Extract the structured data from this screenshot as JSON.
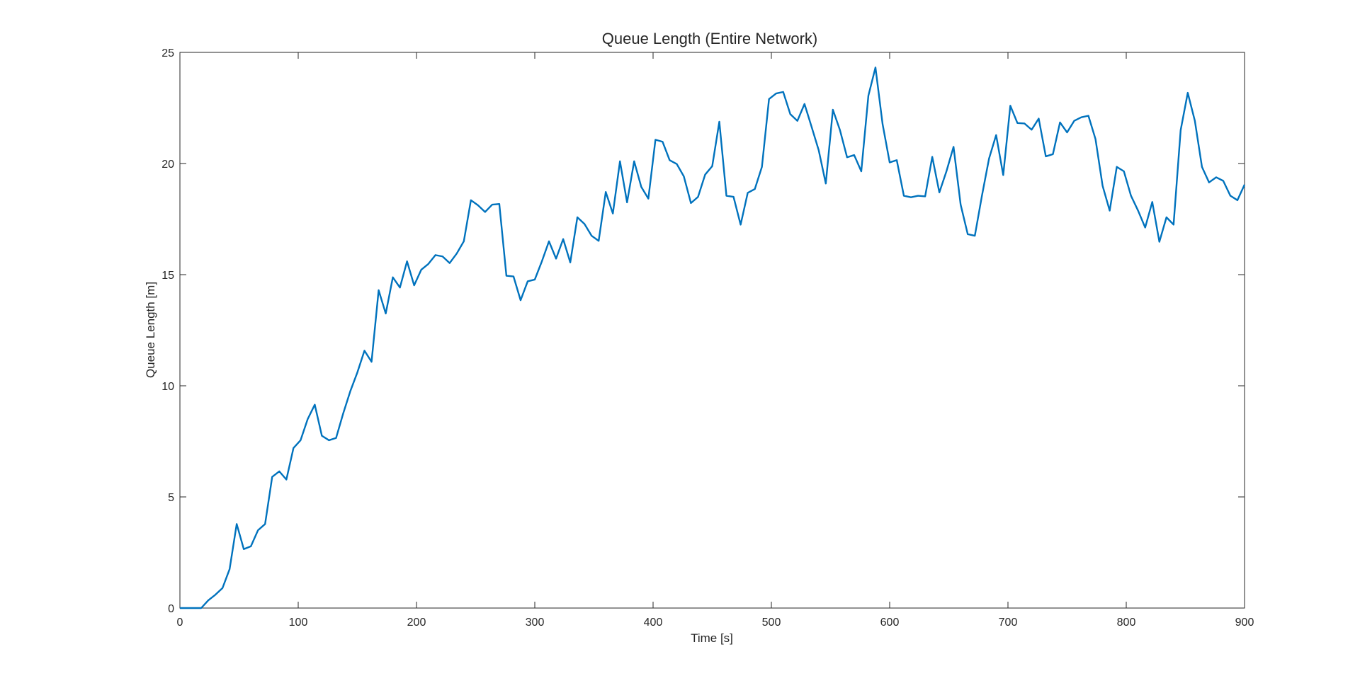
{
  "chart_data": {
    "type": "line",
    "title": "Queue Length (Entire Network)",
    "xlabel": "Time [s]",
    "ylabel": "Queue Length [m]",
    "xlim": [
      0,
      900
    ],
    "ylim": [
      0,
      25
    ],
    "xticks": [
      0,
      100,
      200,
      300,
      400,
      500,
      600,
      700,
      800,
      900
    ],
    "yticks": [
      0,
      5,
      10,
      15,
      20,
      25
    ],
    "grid": false,
    "line_color": "#0072BD",
    "series": [
      {
        "x": [
          0,
          6,
          12,
          18,
          24,
          30,
          36,
          42,
          48,
          54,
          60,
          66,
          72,
          78,
          84,
          90,
          96,
          102,
          108,
          114,
          120,
          126,
          132,
          138,
          144,
          150,
          156,
          162,
          168,
          174,
          180,
          186,
          192,
          198,
          204,
          210,
          216,
          222,
          228,
          234,
          240,
          246,
          252,
          258,
          264,
          270,
          276,
          282,
          288,
          294,
          300,
          306,
          312,
          318,
          324,
          330,
          336,
          342,
          348,
          354,
          360,
          366,
          372,
          378,
          384,
          390,
          396,
          402,
          408,
          414,
          420,
          426,
          432,
          438,
          444,
          450,
          456,
          462,
          468,
          474,
          480,
          486,
          492,
          498,
          504,
          510,
          516,
          522,
          528,
          534,
          540,
          546,
          552,
          558,
          564,
          570,
          576,
          582,
          588,
          594,
          600,
          606,
          612,
          618,
          624,
          630,
          636,
          642,
          648,
          654,
          660,
          666,
          672,
          678,
          684,
          690,
          696,
          702,
          708,
          714,
          720,
          726,
          732,
          738,
          744,
          750,
          756,
          762,
          768,
          774,
          780,
          786,
          792,
          798,
          804,
          810,
          816,
          822,
          828,
          834,
          840,
          846,
          852,
          858,
          864,
          870,
          876,
          882,
          888,
          894,
          900
        ],
        "y": [
          0,
          0,
          0,
          0,
          0.35,
          0.6,
          0.9,
          1.75,
          3.78,
          2.65,
          2.78,
          3.5,
          3.78,
          5.9,
          6.15,
          5.78,
          7.2,
          7.55,
          8.5,
          9.15,
          7.75,
          7.55,
          7.65,
          8.75,
          9.75,
          10.6,
          11.58,
          11.08,
          14.3,
          13.25,
          14.88,
          14.42,
          15.6,
          14.52,
          15.22,
          15.48,
          15.88,
          15.82,
          15.52,
          15.95,
          16.5,
          18.35,
          18.12,
          17.82,
          18.15,
          18.18,
          14.95,
          14.92,
          13.85,
          14.7,
          14.78,
          15.6,
          16.5,
          15.72,
          16.6,
          15.55,
          17.58,
          17.28,
          16.75,
          16.52,
          18.72,
          17.75,
          20.1,
          18.25,
          20.1,
          18.95,
          18.42,
          21.07,
          20.98,
          20.15,
          19.98,
          19.42,
          18.22,
          18.5,
          19.5,
          19.88,
          21.88,
          18.55,
          18.5,
          17.25,
          18.68,
          18.85,
          19.85,
          22.9,
          23.15,
          23.22,
          22.22,
          21.92,
          22.68,
          21.65,
          20.6,
          19.1,
          22.42,
          21.5,
          20.28,
          20.38,
          19.65,
          23.05,
          24.32,
          21.78,
          20.05,
          20.15,
          18.55,
          18.48,
          18.55,
          18.52,
          20.3,
          18.7,
          19.65,
          20.75,
          18.15,
          16.82,
          16.75,
          18.55,
          20.22,
          21.28,
          19.48,
          22.6,
          21.82,
          21.8,
          21.52,
          22.02,
          20.32,
          20.42,
          21.85,
          21.4,
          21.92,
          22.08,
          22.15,
          21.1,
          19.0,
          17.88,
          19.85,
          19.65,
          18.55,
          17.88,
          17.12,
          18.27,
          16.48,
          17.58,
          17.25,
          21.5,
          23.18,
          21.92,
          19.85,
          19.15,
          19.38,
          19.22,
          18.55,
          18.35,
          19.05
        ]
      }
    ]
  }
}
